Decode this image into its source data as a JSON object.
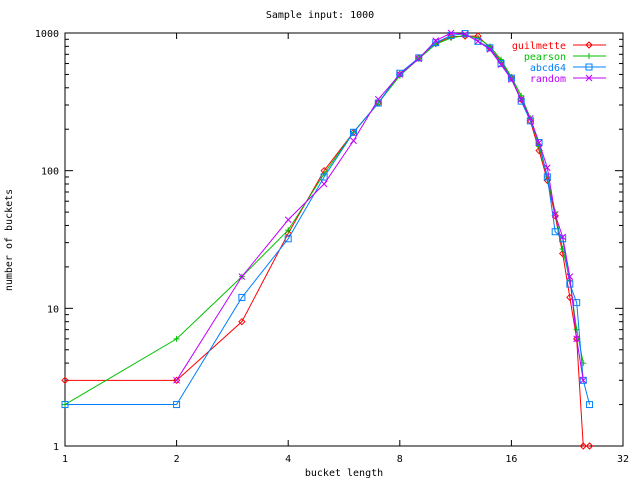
{
  "chart_data": {
    "type": "line",
    "title": "Sample input: 1000",
    "xlabel": "bucket length",
    "ylabel": "number of buckets",
    "xscale": "log2",
    "yscale": "log10",
    "xlim": [
      1,
      32
    ],
    "ylim": [
      1,
      1000
    ],
    "xticks": [
      1,
      2,
      4,
      8,
      16,
      32
    ],
    "yticks": [
      1,
      10,
      100,
      1000
    ],
    "grid": false,
    "legend_position": "top-right",
    "series": [
      {
        "name": "guilmette",
        "color": "#ff0000",
        "marker": "diamond",
        "x": [
          1,
          2,
          3,
          4,
          5,
          6,
          7,
          8,
          9,
          10,
          11,
          12,
          13,
          14,
          15,
          16,
          17,
          18,
          19,
          20,
          21,
          22,
          23,
          24,
          25,
          26
        ],
        "y": [
          3,
          3,
          8,
          35,
          100,
          190,
          310,
          500,
          660,
          840,
          940,
          950,
          950,
          780,
          620,
          470,
          330,
          230,
          140,
          85,
          47,
          25,
          12,
          6,
          1,
          1
        ]
      },
      {
        "name": "pearson",
        "color": "#00c000",
        "marker": "plus",
        "x": [
          1,
          2,
          3,
          4,
          5,
          6,
          7,
          8,
          9,
          10,
          11,
          12,
          13,
          14,
          15,
          16,
          17,
          18,
          19,
          20,
          21,
          22,
          23,
          24,
          25
        ],
        "y": [
          2,
          6,
          17,
          37,
          95,
          190,
          310,
          490,
          650,
          830,
          920,
          960,
          920,
          800,
          640,
          480,
          350,
          240,
          150,
          90,
          50,
          27,
          16,
          7,
          4
        ]
      },
      {
        "name": "abcd64",
        "color": "#0080ff",
        "marker": "square",
        "x": [
          1,
          2,
          3,
          4,
          5,
          6,
          7,
          8,
          9,
          10,
          11,
          12,
          13,
          14,
          15,
          16,
          17,
          18,
          19,
          20,
          21,
          22,
          23,
          24,
          25,
          26
        ],
        "y": [
          2,
          2,
          12,
          32,
          90,
          190,
          310,
          510,
          660,
          850,
          960,
          990,
          870,
          780,
          600,
          470,
          320,
          230,
          160,
          90,
          36,
          32,
          15,
          11,
          3,
          2
        ]
      },
      {
        "name": "random",
        "color": "#c000ff",
        "marker": "cross",
        "x": [
          2,
          3,
          4,
          5,
          6,
          7,
          8,
          9,
          10,
          11,
          12,
          13,
          14,
          15,
          16,
          17,
          18,
          19,
          20,
          21,
          22,
          23,
          24,
          25
        ],
        "y": [
          3,
          17,
          44,
          80,
          165,
          330,
          500,
          650,
          880,
          1000,
          980,
          870,
          760,
          590,
          460,
          330,
          240,
          160,
          105,
          48,
          33,
          17,
          6,
          3
        ]
      }
    ]
  }
}
